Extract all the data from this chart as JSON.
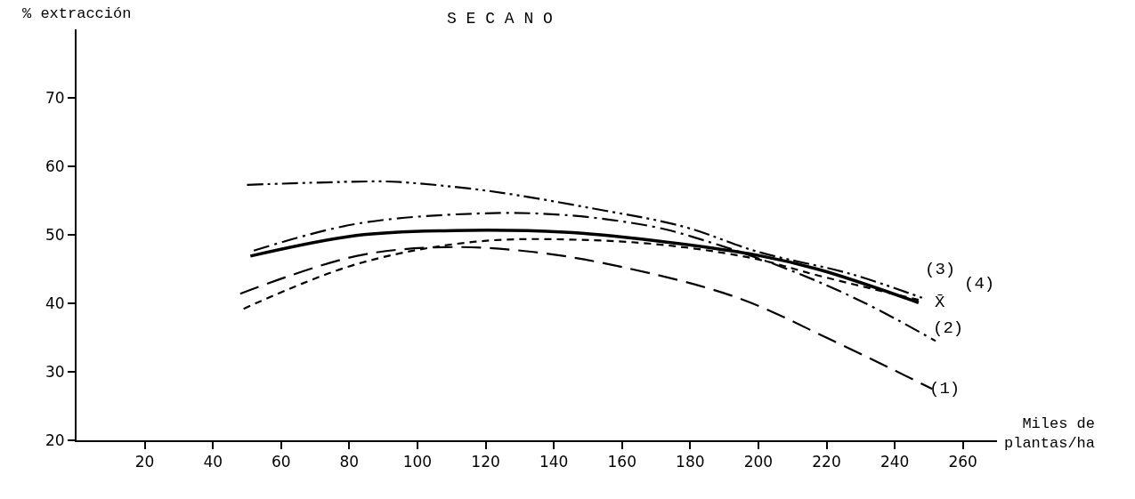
{
  "chart_data": {
    "type": "line",
    "title": "S E C A N O",
    "xlabel": "Miles de plantas/ha",
    "ylabel": "% extracción",
    "xlim": [
      0,
      270
    ],
    "xticks": [
      20,
      40,
      60,
      80,
      100,
      120,
      140,
      160,
      180,
      200,
      220,
      240,
      260
    ],
    "ylim": [
      20,
      80
    ],
    "yticks": [
      20,
      30,
      40,
      50,
      60,
      70
    ],
    "grid": false,
    "legend": false,
    "marker": "none",
    "series": [
      {
        "name": "(1)",
        "color": "#000000",
        "line_style": "dashed",
        "x": [
          48,
          82,
          108,
          134,
          160,
          194,
          222,
          251
        ],
        "values": [
          41.4,
          46.9,
          48.2,
          47.5,
          45.3,
          40.8,
          34.5,
          27.5
        ]
      },
      {
        "name": "(2)",
        "color": "#000000",
        "line_style": "dashdot",
        "x": [
          52,
          82,
          117,
          143,
          169,
          184,
          209,
          231,
          252
        ],
        "values": [
          47.7,
          51.6,
          53.1,
          52.9,
          51.2,
          49.2,
          44.9,
          40.1,
          34.5
        ]
      },
      {
        "name": "(3)",
        "color": "#000000",
        "line_style": "dotted",
        "x": [
          49,
          82,
          117,
          152,
          178,
          200,
          218,
          247
        ],
        "values": [
          39.2,
          45.7,
          49.0,
          49.2,
          48.2,
          46.4,
          44.0,
          40.5
        ]
      },
      {
        "name": "X̄",
        "color": "#000000",
        "line_style": "solid",
        "x": [
          51,
          82,
          108,
          143,
          169,
          200,
          218,
          247
        ],
        "values": [
          46.9,
          49.9,
          50.6,
          50.4,
          49.2,
          47.0,
          44.9,
          40.1
        ]
      },
      {
        "name": "(4)",
        "color": "#000000",
        "line_style": "dashdotdot",
        "x": [
          50,
          87,
          95,
          121,
          152,
          178,
          200,
          227,
          248
        ],
        "values": [
          57.3,
          57.8,
          57.7,
          56.4,
          53.8,
          51.2,
          47.5,
          44.3,
          40.8
        ]
      }
    ]
  }
}
